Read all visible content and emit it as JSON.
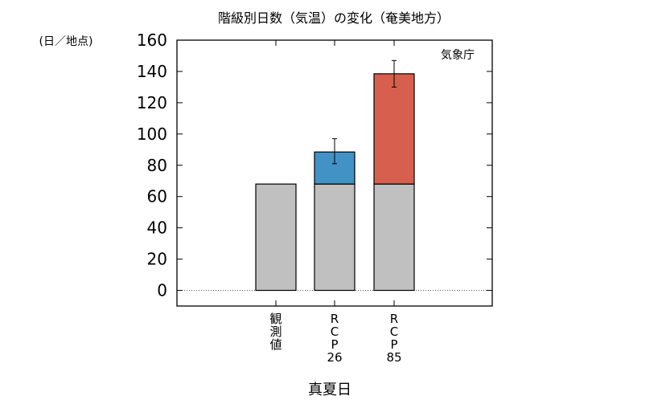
{
  "chart_data": {
    "type": "bar",
    "title": "階級別日数（気温）の変化（奄美地方）",
    "ylabel": "(日／地点)",
    "xlabel": "真夏日",
    "source_label": "気象庁",
    "ylim": [
      -10,
      160
    ],
    "yticks": [
      0,
      20,
      40,
      60,
      80,
      100,
      120,
      140,
      160
    ],
    "grid": false,
    "zero_line": true,
    "categories": [
      {
        "label_lines": [
          "観",
          "測",
          "値"
        ],
        "base": 68,
        "increase": 0,
        "error": null
      },
      {
        "label_lines": [
          "R",
          "C",
          "P",
          "26"
        ],
        "base": 68,
        "increase": 20.5,
        "error": [
          81,
          97
        ]
      },
      {
        "label_lines": [
          "R",
          "C",
          "P",
          "85"
        ],
        "base": 68,
        "increase": 70.5,
        "error": [
          130,
          147
        ]
      }
    ],
    "colors": {
      "base": "#c0c0c0",
      "rcp26": "#4292c6",
      "rcp85": "#d6604d",
      "outline": "#000000"
    }
  }
}
